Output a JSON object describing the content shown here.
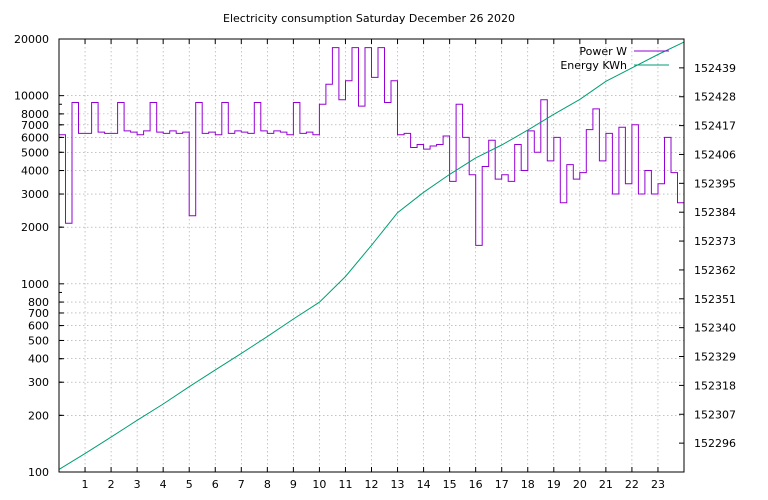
{
  "chart_data": {
    "type": "line",
    "title": "Electricity consumption Saturday December 26 2020",
    "xlabel": "",
    "ylabel": "",
    "y2label": "",
    "xlim": [
      0,
      24
    ],
    "ylim": [
      100,
      20000
    ],
    "y_scale": "log",
    "y2lim": [
      152285,
      152450
    ],
    "grid": true,
    "legend_position": "top-right",
    "x_ticks": [
      "1",
      "2",
      "3",
      "4",
      "5",
      "6",
      "7",
      "8",
      "9",
      "10",
      "11",
      "12",
      "13",
      "14",
      "15",
      "16",
      "17",
      "18",
      "19",
      "20",
      "21",
      "22",
      "23"
    ],
    "y_ticks": [
      "100",
      "200",
      "300",
      "400",
      "500",
      "600",
      "700",
      "800",
      "1000",
      "2000",
      "3000",
      "4000",
      "5000",
      "6000",
      "7000",
      "8000",
      "10000",
      "20000"
    ],
    "y2_ticks": [
      "152296",
      "152307",
      "152318",
      "152329",
      "152340",
      "152351",
      "152362",
      "152373",
      "152384",
      "152395",
      "152406",
      "152417",
      "152428",
      "152439"
    ],
    "series": [
      {
        "name": "Power W",
        "axis": "left",
        "color": "#9400d3",
        "x": [
          0.0,
          0.25,
          0.5,
          0.75,
          1.0,
          1.25,
          1.5,
          1.75,
          2.0,
          2.25,
          2.5,
          2.75,
          3.0,
          3.25,
          3.5,
          3.75,
          4.0,
          4.25,
          4.5,
          4.75,
          5.0,
          5.25,
          5.5,
          5.75,
          6.0,
          6.25,
          6.5,
          6.75,
          7.0,
          7.25,
          7.5,
          7.75,
          8.0,
          8.25,
          8.5,
          8.75,
          9.0,
          9.25,
          9.5,
          9.75,
          10.0,
          10.25,
          10.5,
          10.75,
          11.0,
          11.25,
          11.5,
          11.75,
          12.0,
          12.25,
          12.5,
          12.75,
          13.0,
          13.25,
          13.5,
          13.75,
          14.0,
          14.25,
          14.5,
          14.75,
          15.0,
          15.25,
          15.5,
          15.75,
          16.0,
          16.25,
          16.5,
          16.75,
          17.0,
          17.25,
          17.5,
          17.75,
          18.0,
          18.25,
          18.5,
          18.75,
          19.0,
          19.25,
          19.5,
          19.75,
          20.0,
          20.25,
          20.5,
          20.75,
          21.0,
          21.25,
          21.5,
          21.75,
          22.0,
          22.25,
          22.5,
          22.75,
          23.0,
          23.25,
          23.5,
          23.75
        ],
        "values": [
          6200,
          2100,
          9200,
          6300,
          6300,
          9200,
          6400,
          6300,
          6300,
          9200,
          6500,
          6400,
          6200,
          6500,
          9200,
          6400,
          6300,
          6500,
          6300,
          6400,
          2300,
          9200,
          6300,
          6400,
          6200,
          9200,
          6300,
          6500,
          6400,
          6300,
          9200,
          6500,
          6300,
          6500,
          6400,
          6200,
          9200,
          6300,
          6400,
          6200,
          9000,
          11500,
          18000,
          9500,
          12000,
          18000,
          8800,
          18000,
          12500,
          18000,
          9200,
          12000,
          6200,
          6300,
          5300,
          5500,
          5200,
          5400,
          5500,
          6100,
          3500,
          9000,
          6000,
          3800,
          1600,
          4200,
          5800,
          3600,
          3800,
          3500,
          5500,
          4000,
          6500,
          5000,
          9500,
          4500,
          6000,
          2700,
          4300,
          3600,
          3900,
          6600,
          8500,
          4500,
          6300,
          3000,
          6800,
          3400,
          7000,
          3000,
          4000,
          3000,
          3400,
          6000,
          3900,
          2700
        ]
      },
      {
        "name": "Energy KWh",
        "axis": "right",
        "color": "#009e73",
        "x": [
          0,
          1,
          2,
          3,
          4,
          5,
          6,
          7,
          8,
          9,
          10,
          11,
          12,
          13,
          14,
          15,
          16,
          17,
          18,
          19,
          20,
          21,
          22,
          23,
          24
        ],
        "values": [
          152286.0,
          152292.0,
          152298.3,
          152304.7,
          152310.9,
          152317.5,
          152323.9,
          152330.2,
          152336.6,
          152343.3,
          152349.7,
          152359.5,
          152371.4,
          152383.8,
          152391.6,
          152398.4,
          152404.7,
          152409.6,
          152415.3,
          152421.3,
          152427.0,
          152433.9,
          152439.0,
          152444.1,
          152448.8
        ]
      }
    ]
  }
}
